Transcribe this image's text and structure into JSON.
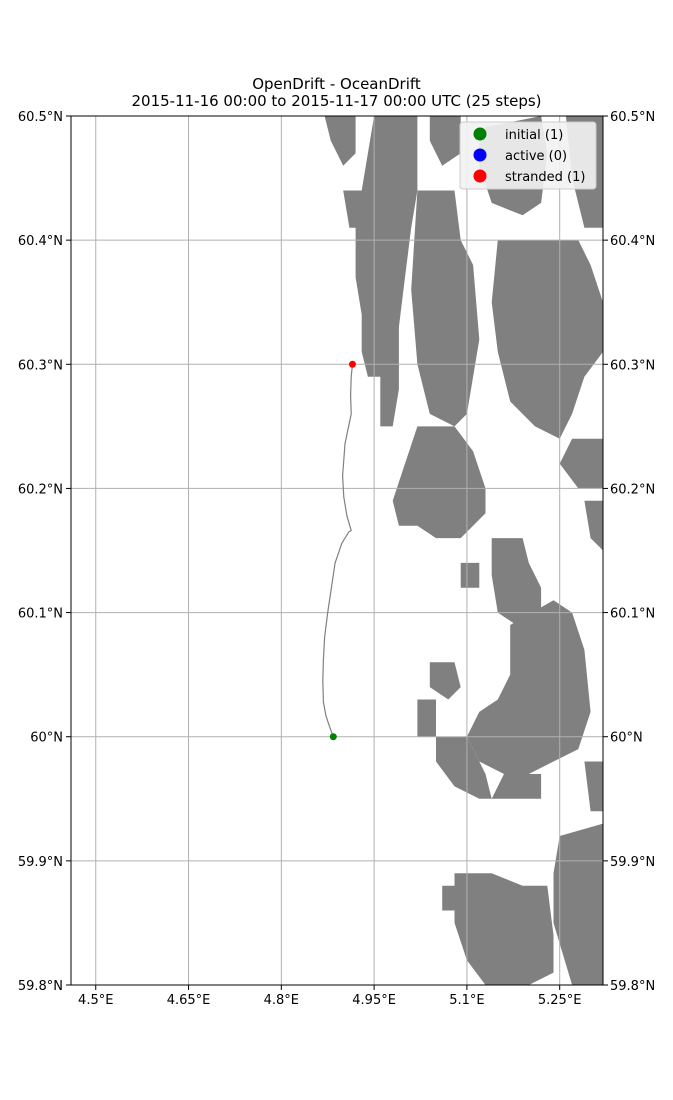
{
  "chart_data": {
    "type": "scatter",
    "title": "OpenDrift - OceanDrift",
    "subtitle": "2015-11-16 00:00 to 2015-11-17 00:00 UTC (25 steps)",
    "xlim": [
      4.46,
      5.32
    ],
    "ylim": [
      59.8,
      60.5
    ],
    "x_ticks": [
      {
        "value": 4.5,
        "label": "4.5°E"
      },
      {
        "value": 4.65,
        "label": "4.65°E"
      },
      {
        "value": 4.8,
        "label": "4.8°E"
      },
      {
        "value": 4.95,
        "label": "4.95°E"
      },
      {
        "value": 5.1,
        "label": "5.1°E"
      },
      {
        "value": 5.25,
        "label": "5.25°E"
      }
    ],
    "y_ticks": [
      {
        "value": 59.8,
        "label": "59.8°N"
      },
      {
        "value": 59.9,
        "label": "59.9°N"
      },
      {
        "value": 60.0,
        "label": "60°N"
      },
      {
        "value": 60.1,
        "label": "60.1°N"
      },
      {
        "value": 60.2,
        "label": "60.2°N"
      },
      {
        "value": 60.3,
        "label": "60.3°N"
      },
      {
        "value": 60.4,
        "label": "60.4°N"
      },
      {
        "value": 60.5,
        "label": "60.5°N"
      }
    ],
    "grid": true,
    "legend_position": "top-right",
    "legend": [
      {
        "label": "initial (1)",
        "color": "#008000"
      },
      {
        "label": "active (0)",
        "color": "#0000ff"
      },
      {
        "label": "stranded (1)",
        "color": "#ff0000"
      }
    ],
    "colors": {
      "land": "#808080",
      "ocean": "#ffffff",
      "trajectory": "#808080",
      "grid": "#b0b0b0"
    },
    "trajectory": [
      {
        "lon": 4.884,
        "lat": 60.0
      },
      {
        "lon": 4.878,
        "lat": 60.008
      },
      {
        "lon": 4.872,
        "lat": 60.017
      },
      {
        "lon": 4.868,
        "lat": 60.028
      },
      {
        "lon": 4.867,
        "lat": 60.045
      },
      {
        "lon": 4.868,
        "lat": 60.062
      },
      {
        "lon": 4.87,
        "lat": 60.08
      },
      {
        "lon": 4.875,
        "lat": 60.1
      },
      {
        "lon": 4.881,
        "lat": 60.12
      },
      {
        "lon": 4.887,
        "lat": 60.14
      },
      {
        "lon": 4.898,
        "lat": 60.156
      },
      {
        "lon": 4.909,
        "lat": 60.165
      },
      {
        "lon": 4.913,
        "lat": 60.166
      },
      {
        "lon": 4.906,
        "lat": 60.178
      },
      {
        "lon": 4.901,
        "lat": 60.193
      },
      {
        "lon": 4.899,
        "lat": 60.21
      },
      {
        "lon": 4.903,
        "lat": 60.236
      },
      {
        "lon": 4.913,
        "lat": 60.26
      },
      {
        "lon": 4.912,
        "lat": 60.275
      },
      {
        "lon": 4.913,
        "lat": 60.29
      },
      {
        "lon": 4.915,
        "lat": 60.3
      }
    ],
    "points": [
      {
        "category": "initial",
        "lon": 4.884,
        "lat": 60.0,
        "color": "#008000"
      },
      {
        "category": "stranded",
        "lon": 4.915,
        "lat": 60.3,
        "color": "#ff0000"
      }
    ],
    "land": [
      [
        [
          4.95,
          60.5
        ],
        [
          5.02,
          60.5
        ],
        [
          5.02,
          60.44
        ],
        [
          5.01,
          60.41
        ],
        [
          5.0,
          60.37
        ],
        [
          4.99,
          60.33
        ],
        [
          4.99,
          60.28
        ],
        [
          4.98,
          60.25
        ],
        [
          4.96,
          60.25
        ],
        [
          4.96,
          60.29
        ],
        [
          4.94,
          60.29
        ],
        [
          4.93,
          60.31
        ],
        [
          4.93,
          60.34
        ],
        [
          4.92,
          60.37
        ],
        [
          4.92,
          60.41
        ],
        [
          4.93,
          60.44
        ],
        [
          4.94,
          60.47
        ]
      ],
      [
        [
          4.87,
          60.5
        ],
        [
          4.92,
          60.5
        ],
        [
          4.92,
          60.47
        ],
        [
          4.9,
          60.46
        ],
        [
          4.88,
          60.48
        ]
      ],
      [
        [
          4.9,
          60.44
        ],
        [
          4.94,
          60.44
        ],
        [
          4.93,
          60.41
        ],
        [
          4.91,
          60.41
        ]
      ],
      [
        [
          5.04,
          60.5
        ],
        [
          5.09,
          60.5
        ],
        [
          5.09,
          60.47
        ],
        [
          5.06,
          60.46
        ],
        [
          5.04,
          60.48
        ]
      ],
      [
        [
          5.02,
          60.44
        ],
        [
          5.08,
          60.44
        ],
        [
          5.09,
          60.4
        ],
        [
          5.11,
          60.38
        ],
        [
          5.12,
          60.32
        ],
        [
          5.1,
          60.26
        ],
        [
          5.08,
          60.25
        ],
        [
          5.04,
          60.26
        ],
        [
          5.02,
          60.3
        ],
        [
          5.01,
          60.36
        ]
      ],
      [
        [
          5.12,
          60.49
        ],
        [
          5.22,
          60.5
        ],
        [
          5.23,
          60.47
        ],
        [
          5.22,
          60.43
        ],
        [
          5.19,
          60.42
        ],
        [
          5.14,
          60.43
        ],
        [
          5.12,
          60.46
        ]
      ],
      [
        [
          5.15,
          60.4
        ],
        [
          5.28,
          60.4
        ],
        [
          5.3,
          60.38
        ],
        [
          5.32,
          60.35
        ],
        [
          5.32,
          60.31
        ],
        [
          5.29,
          60.29
        ],
        [
          5.27,
          60.26
        ],
        [
          5.25,
          60.24
        ],
        [
          5.21,
          60.25
        ],
        [
          5.17,
          60.27
        ],
        [
          5.15,
          60.31
        ],
        [
          5.14,
          60.35
        ]
      ],
      [
        [
          5.26,
          60.5
        ],
        [
          5.32,
          60.5
        ],
        [
          5.32,
          60.41
        ],
        [
          5.29,
          60.41
        ],
        [
          5.27,
          60.45
        ]
      ],
      [
        [
          5.27,
          60.24
        ],
        [
          5.32,
          60.24
        ],
        [
          5.32,
          60.2
        ],
        [
          5.28,
          60.2
        ],
        [
          5.25,
          60.22
        ]
      ],
      [
        [
          5.02,
          60.25
        ],
        [
          5.08,
          60.25
        ],
        [
          5.11,
          60.23
        ],
        [
          5.13,
          60.2
        ],
        [
          5.13,
          60.18
        ],
        [
          5.09,
          60.16
        ],
        [
          5.05,
          60.16
        ],
        [
          5.02,
          60.17
        ],
        [
          4.99,
          60.17
        ],
        [
          4.98,
          60.19
        ],
        [
          5.0,
          60.22
        ]
      ],
      [
        [
          5.29,
          60.19
        ],
        [
          5.32,
          60.19
        ],
        [
          5.32,
          60.15
        ],
        [
          5.3,
          60.16
        ]
      ],
      [
        [
          5.09,
          60.14
        ],
        [
          5.12,
          60.14
        ],
        [
          5.12,
          60.12
        ],
        [
          5.09,
          60.12
        ]
      ],
      [
        [
          5.14,
          60.16
        ],
        [
          5.19,
          60.16
        ],
        [
          5.2,
          60.14
        ],
        [
          5.22,
          60.12
        ],
        [
          5.22,
          60.1
        ],
        [
          5.18,
          60.09
        ],
        [
          5.15,
          60.1
        ],
        [
          5.14,
          60.13
        ]
      ],
      [
        [
          5.17,
          60.09
        ],
        [
          5.24,
          60.11
        ],
        [
          5.27,
          60.1
        ],
        [
          5.29,
          60.07
        ],
        [
          5.3,
          60.02
        ],
        [
          5.28,
          59.99
        ],
        [
          5.24,
          59.98
        ],
        [
          5.2,
          59.97
        ],
        [
          5.16,
          59.97
        ],
        [
          5.12,
          59.98
        ],
        [
          5.1,
          60.0
        ],
        [
          5.12,
          60.02
        ],
        [
          5.15,
          60.03
        ],
        [
          5.17,
          60.05
        ]
      ],
      [
        [
          5.04,
          60.06
        ],
        [
          5.08,
          60.06
        ],
        [
          5.09,
          60.04
        ],
        [
          5.07,
          60.03
        ],
        [
          5.04,
          60.04
        ]
      ],
      [
        [
          5.02,
          60.03
        ],
        [
          5.05,
          60.03
        ],
        [
          5.05,
          60.0
        ],
        [
          5.02,
          60.0
        ]
      ],
      [
        [
          5.05,
          60.0
        ],
        [
          5.1,
          60.0
        ],
        [
          5.12,
          59.98
        ],
        [
          5.13,
          59.97
        ],
        [
          5.14,
          59.95
        ],
        [
          5.12,
          59.95
        ],
        [
          5.08,
          59.96
        ],
        [
          5.05,
          59.98
        ]
      ],
      [
        [
          5.14,
          59.95
        ],
        [
          5.22,
          59.95
        ],
        [
          5.22,
          59.97
        ],
        [
          5.16,
          59.97
        ]
      ],
      [
        [
          5.29,
          59.98
        ],
        [
          5.32,
          59.98
        ],
        [
          5.32,
          59.94
        ],
        [
          5.3,
          59.94
        ]
      ],
      [
        [
          5.25,
          59.92
        ],
        [
          5.32,
          59.93
        ],
        [
          5.32,
          59.8
        ],
        [
          5.27,
          59.8
        ],
        [
          5.24,
          59.85
        ],
        [
          5.24,
          59.89
        ]
      ],
      [
        [
          5.08,
          59.89
        ],
        [
          5.14,
          59.89
        ],
        [
          5.19,
          59.88
        ],
        [
          5.23,
          59.88
        ],
        [
          5.24,
          59.84
        ],
        [
          5.24,
          59.81
        ],
        [
          5.2,
          59.8
        ],
        [
          5.13,
          59.8
        ],
        [
          5.1,
          59.82
        ],
        [
          5.08,
          59.85
        ]
      ],
      [
        [
          5.06,
          59.88
        ],
        [
          5.09,
          59.88
        ],
        [
          5.09,
          59.86
        ],
        [
          5.06,
          59.86
        ]
      ]
    ]
  }
}
